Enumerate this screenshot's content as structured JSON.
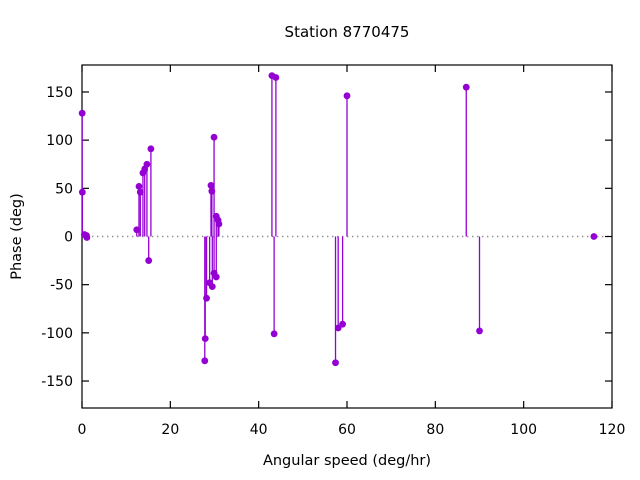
{
  "chart_data": {
    "type": "scatter",
    "style": "stem (impulses with filled circle markers)",
    "title": "Station 8770475",
    "xlabel": "Angular speed (deg/hr)",
    "ylabel": "Phase (deg)",
    "xlim": [
      0,
      120
    ],
    "ylim": [
      -178,
      178
    ],
    "xticks": [
      0,
      20,
      40,
      60,
      80,
      100,
      120
    ],
    "yticks": [
      -150,
      -100,
      -50,
      0,
      50,
      100,
      150
    ],
    "grid": "off",
    "legend": "none",
    "zero_line": {
      "y": 0,
      "style": "dotted",
      "color": "#8f8f8f"
    },
    "series_color": "#9400d3",
    "border_color": "#000000",
    "background": "#ffffff",
    "points": [
      {
        "x": 0.04,
        "y": 128
      },
      {
        "x": 0.08,
        "y": 46
      },
      {
        "x": 0.54,
        "y": 2
      },
      {
        "x": 1.02,
        "y": 1
      },
      {
        "x": 1.1,
        "y": -1
      },
      {
        "x": 12.4,
        "y": 7
      },
      {
        "x": 12.9,
        "y": 52
      },
      {
        "x": 13.2,
        "y": 46
      },
      {
        "x": 13.8,
        "y": 66
      },
      {
        "x": 14.2,
        "y": 70
      },
      {
        "x": 14.7,
        "y": 75
      },
      {
        "x": 15.1,
        "y": -25
      },
      {
        "x": 15.6,
        "y": 91
      },
      {
        "x": 27.8,
        "y": -129
      },
      {
        "x": 27.9,
        "y": -106
      },
      {
        "x": 28.2,
        "y": -64
      },
      {
        "x": 28.9,
        "y": -48
      },
      {
        "x": 29.2,
        "y": 53
      },
      {
        "x": 29.4,
        "y": 47
      },
      {
        "x": 29.5,
        "y": -52
      },
      {
        "x": 29.9,
        "y": 103
      },
      {
        "x": 29.9,
        "y": -38
      },
      {
        "x": 30.4,
        "y": -42
      },
      {
        "x": 30.4,
        "y": 21
      },
      {
        "x": 30.8,
        "y": 17
      },
      {
        "x": 31.0,
        "y": 13
      },
      {
        "x": 43.0,
        "y": 167
      },
      {
        "x": 43.5,
        "y": -101
      },
      {
        "x": 43.9,
        "y": 165
      },
      {
        "x": 57.4,
        "y": -131
      },
      {
        "x": 58.0,
        "y": -95
      },
      {
        "x": 59.0,
        "y": -91
      },
      {
        "x": 60.0,
        "y": 146
      },
      {
        "x": 87.0,
        "y": 155
      },
      {
        "x": 90.0,
        "y": -98
      },
      {
        "x": 115.9,
        "y": 0
      }
    ]
  }
}
